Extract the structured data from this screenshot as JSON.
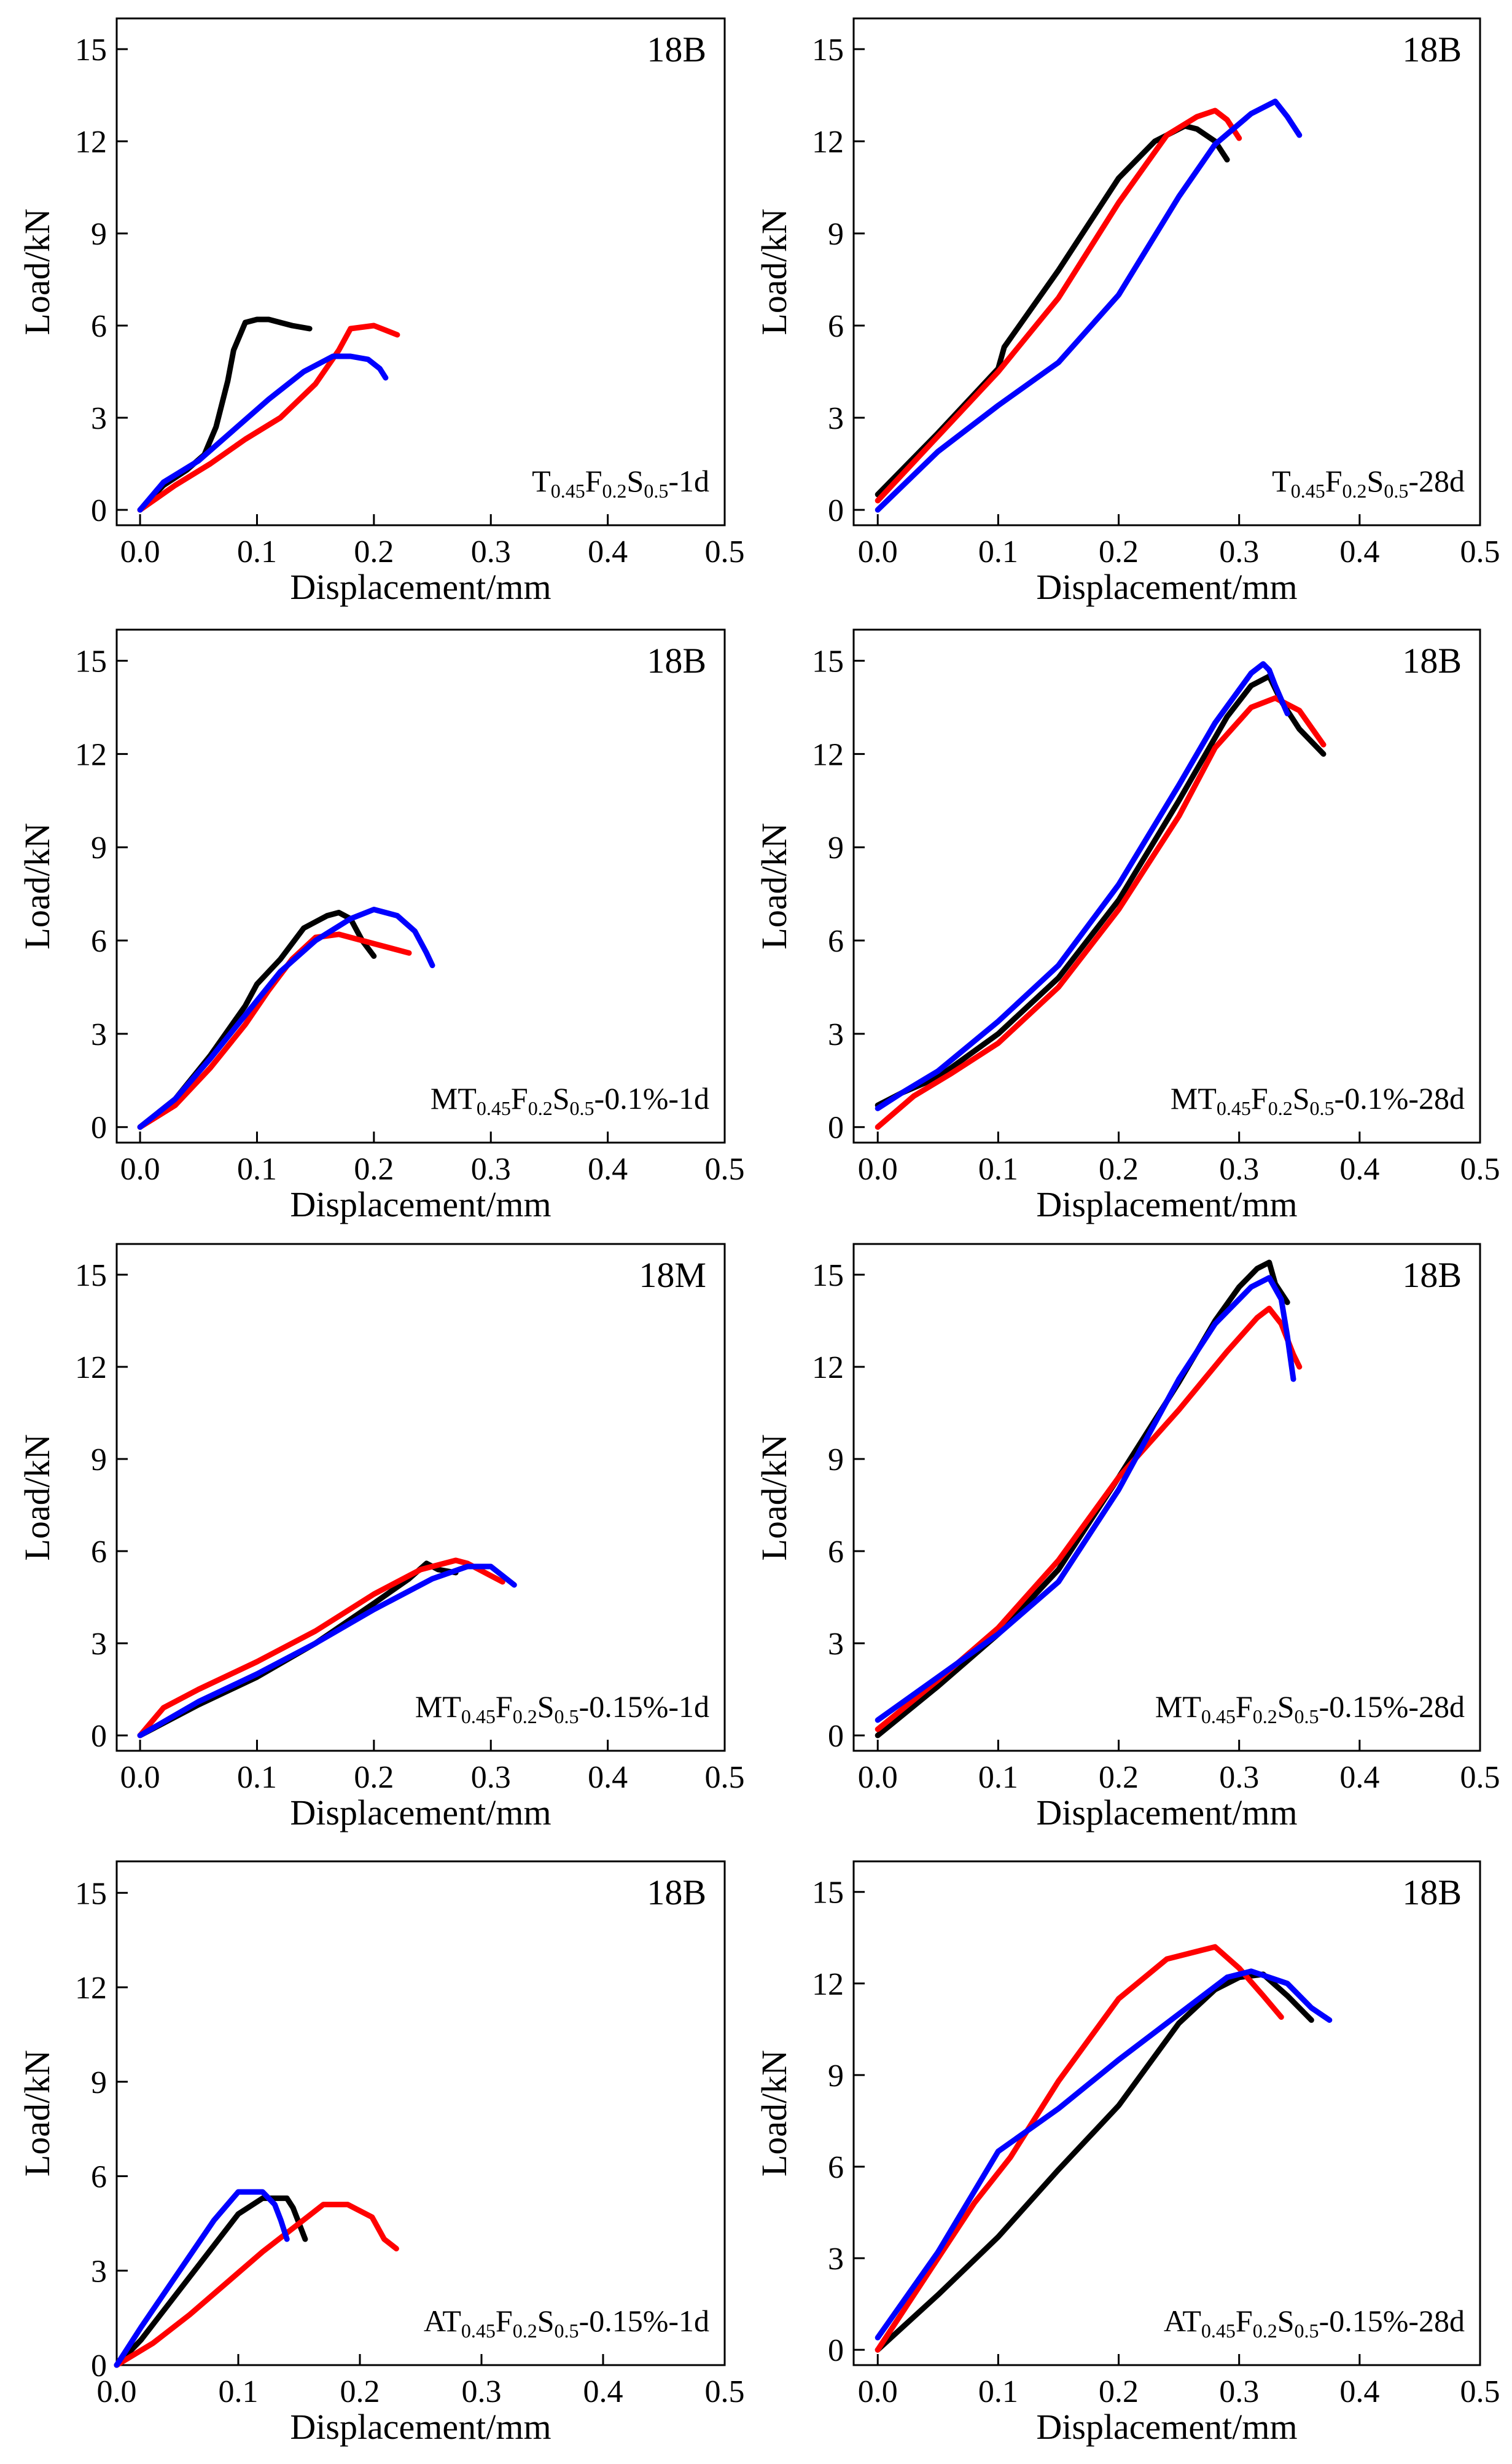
{
  "figure": {
    "colors": {
      "black": "#000000",
      "red": "#ff0000",
      "blue": "#0000ff"
    }
  },
  "chart_data": [
    {
      "type": "line",
      "tag": "18B",
      "label": {
        "pre": "T",
        "s1": "0.45",
        "m1": "F",
        "s2": "0.2",
        "m2": "S",
        "s3": "0.5",
        "post": "-1d"
      },
      "xlabel": "Displacement/mm",
      "ylabel": "Load/kN",
      "xlim": [
        -0.02,
        0.5
      ],
      "ylim": [
        -0.5,
        16
      ],
      "xticks": [
        "0.0",
        "0.1",
        "0.2",
        "0.3",
        "0.4",
        "0.5"
      ],
      "yticks": [
        "0",
        "3",
        "6",
        "9",
        "12",
        "15"
      ],
      "series": [
        {
          "name": "black",
          "color": "#000000",
          "x": [
            0.0,
            0.02,
            0.04,
            0.055,
            0.065,
            0.075,
            0.08,
            0.09,
            0.1,
            0.11,
            0.12,
            0.13,
            0.145
          ],
          "y": [
            0.0,
            0.8,
            1.3,
            1.8,
            2.7,
            4.2,
            5.2,
            6.1,
            6.2,
            6.2,
            6.1,
            6.0,
            5.9
          ]
        },
        {
          "name": "red",
          "color": "#ff0000",
          "x": [
            0.0,
            0.03,
            0.06,
            0.09,
            0.12,
            0.15,
            0.17,
            0.18,
            0.2,
            0.22
          ],
          "y": [
            0.0,
            0.8,
            1.5,
            2.3,
            3.0,
            4.1,
            5.2,
            5.9,
            6.0,
            5.7
          ]
        },
        {
          "name": "blue",
          "color": "#0000ff",
          "x": [
            0.0,
            0.02,
            0.05,
            0.08,
            0.11,
            0.14,
            0.165,
            0.18,
            0.195,
            0.205,
            0.21
          ],
          "y": [
            0.0,
            0.9,
            1.6,
            2.6,
            3.6,
            4.5,
            5.0,
            5.0,
            4.9,
            4.6,
            4.3
          ]
        }
      ]
    },
    {
      "type": "line",
      "tag": "18B",
      "label": {
        "pre": "T",
        "s1": "0.45",
        "m1": "F",
        "s2": "0.2",
        "m2": "S",
        "s3": "0.5",
        "post": "-28d"
      },
      "xlabel": "Displacement/mm",
      "ylabel": "Load/kN",
      "xlim": [
        -0.02,
        0.5
      ],
      "ylim": [
        -0.5,
        16
      ],
      "xticks": [
        "0.0",
        "0.1",
        "0.2",
        "0.3",
        "0.4",
        "0.5"
      ],
      "yticks": [
        "0",
        "3",
        "6",
        "9",
        "12",
        "15"
      ],
      "series": [
        {
          "name": "black",
          "color": "#000000",
          "x": [
            0.0,
            0.05,
            0.1,
            0.105,
            0.15,
            0.2,
            0.23,
            0.255,
            0.265,
            0.28,
            0.29
          ],
          "y": [
            0.5,
            2.5,
            4.6,
            5.3,
            7.8,
            10.8,
            12.0,
            12.5,
            12.4,
            12.0,
            11.4
          ]
        },
        {
          "name": "red",
          "color": "#ff0000",
          "x": [
            0.0,
            0.05,
            0.1,
            0.15,
            0.2,
            0.24,
            0.265,
            0.28,
            0.29,
            0.3
          ],
          "y": [
            0.3,
            2.4,
            4.5,
            6.9,
            10.0,
            12.2,
            12.8,
            13.0,
            12.7,
            12.1
          ]
        },
        {
          "name": "blue",
          "color": "#0000ff",
          "x": [
            0.0,
            0.05,
            0.1,
            0.15,
            0.2,
            0.25,
            0.28,
            0.31,
            0.33,
            0.34,
            0.35
          ],
          "y": [
            0.0,
            1.9,
            3.4,
            4.8,
            7.0,
            10.2,
            11.9,
            12.9,
            13.3,
            12.8,
            12.2
          ]
        }
      ]
    },
    {
      "type": "line",
      "tag": "18B",
      "label": {
        "pre": "MT",
        "s1": "0.45",
        "m1": "F",
        "s2": "0.2",
        "m2": "S",
        "s3": "0.5",
        "post": "-0.1%-1d"
      },
      "xlabel": "Displacement/mm",
      "ylabel": "Load/kN",
      "xlim": [
        -0.02,
        0.5
      ],
      "ylim": [
        -0.5,
        16
      ],
      "xticks": [
        "0.0",
        "0.1",
        "0.2",
        "0.3",
        "0.4",
        "0.5"
      ],
      "yticks": [
        "0",
        "3",
        "6",
        "9",
        "12",
        "15"
      ],
      "series": [
        {
          "name": "black",
          "color": "#000000",
          "x": [
            0.0,
            0.03,
            0.06,
            0.09,
            0.1,
            0.12,
            0.14,
            0.16,
            0.17,
            0.18,
            0.19,
            0.2
          ],
          "y": [
            0.0,
            0.9,
            2.3,
            3.9,
            4.6,
            5.4,
            6.4,
            6.8,
            6.9,
            6.7,
            6.0,
            5.5
          ]
        },
        {
          "name": "red",
          "color": "#ff0000",
          "x": [
            0.0,
            0.03,
            0.06,
            0.09,
            0.11,
            0.13,
            0.15,
            0.17,
            0.2,
            0.23
          ],
          "y": [
            0.0,
            0.7,
            1.9,
            3.3,
            4.4,
            5.4,
            6.1,
            6.2,
            5.9,
            5.6
          ]
        },
        {
          "name": "blue",
          "color": "#0000ff",
          "x": [
            0.0,
            0.03,
            0.06,
            0.09,
            0.12,
            0.15,
            0.18,
            0.2,
            0.22,
            0.235,
            0.245,
            0.25
          ],
          "y": [
            0.0,
            0.9,
            2.2,
            3.6,
            5.0,
            6.0,
            6.7,
            7.0,
            6.8,
            6.3,
            5.6,
            5.2
          ]
        }
      ]
    },
    {
      "type": "line",
      "tag": "18B",
      "label": {
        "pre": "MT",
        "s1": "0.45",
        "m1": "F",
        "s2": "0.2",
        "m2": "S",
        "s3": "0.5",
        "post": "-0.1%-28d"
      },
      "xlabel": "Displacement/mm",
      "ylabel": "Load/kN",
      "xlim": [
        -0.02,
        0.5
      ],
      "ylim": [
        -0.5,
        16
      ],
      "xticks": [
        "0.0",
        "0.1",
        "0.2",
        "0.3",
        "0.4",
        "0.5"
      ],
      "yticks": [
        "0",
        "3",
        "6",
        "9",
        "12",
        "15"
      ],
      "series": [
        {
          "name": "black",
          "color": "#000000",
          "x": [
            0.0,
            0.02,
            0.05,
            0.1,
            0.15,
            0.2,
            0.25,
            0.29,
            0.31,
            0.325,
            0.335,
            0.35,
            0.37
          ],
          "y": [
            0.7,
            1.1,
            1.6,
            3.0,
            4.8,
            7.3,
            10.5,
            13.2,
            14.2,
            14.5,
            13.7,
            12.8,
            12.0
          ]
        },
        {
          "name": "red",
          "color": "#ff0000",
          "x": [
            0.0,
            0.03,
            0.06,
            0.1,
            0.15,
            0.2,
            0.25,
            0.28,
            0.31,
            0.33,
            0.35,
            0.37
          ],
          "y": [
            0.0,
            1.0,
            1.7,
            2.7,
            4.5,
            7.0,
            10.0,
            12.2,
            13.5,
            13.8,
            13.4,
            12.3
          ]
        },
        {
          "name": "blue",
          "color": "#0000ff",
          "x": [
            0.0,
            0.02,
            0.05,
            0.1,
            0.15,
            0.2,
            0.25,
            0.28,
            0.31,
            0.32,
            0.325,
            0.33,
            0.34
          ],
          "y": [
            0.6,
            1.1,
            1.8,
            3.4,
            5.2,
            7.8,
            11.0,
            13.0,
            14.6,
            14.9,
            14.7,
            14.2,
            13.3
          ]
        }
      ]
    },
    {
      "type": "line",
      "tag": "18M",
      "label": {
        "pre": "MT",
        "s1": "0.45",
        "m1": "F",
        "s2": "0.2",
        "m2": "S",
        "s3": "0.5",
        "post": "-0.15%-1d"
      },
      "xlabel": "Displacement/mm",
      "ylabel": "Load/kN",
      "xlim": [
        -0.02,
        0.5
      ],
      "ylim": [
        -0.5,
        16
      ],
      "xticks": [
        "0.0",
        "0.1",
        "0.2",
        "0.3",
        "0.4",
        "0.5"
      ],
      "yticks": [
        "0",
        "3",
        "6",
        "9",
        "12",
        "15"
      ],
      "series": [
        {
          "name": "black",
          "color": "#000000",
          "x": [
            0.0,
            0.05,
            0.1,
            0.15,
            0.2,
            0.23,
            0.245,
            0.255,
            0.27
          ],
          "y": [
            0.0,
            1.0,
            1.9,
            3.0,
            4.3,
            5.1,
            5.6,
            5.4,
            5.3
          ]
        },
        {
          "name": "red",
          "color": "#ff0000",
          "x": [
            0.0,
            0.02,
            0.05,
            0.1,
            0.15,
            0.2,
            0.24,
            0.27,
            0.28,
            0.3,
            0.31
          ],
          "y": [
            0.0,
            0.9,
            1.5,
            2.4,
            3.4,
            4.6,
            5.4,
            5.7,
            5.6,
            5.2,
            5.0
          ]
        },
        {
          "name": "blue",
          "color": "#0000ff",
          "x": [
            0.0,
            0.05,
            0.1,
            0.15,
            0.2,
            0.25,
            0.28,
            0.3,
            0.31,
            0.32
          ],
          "y": [
            0.0,
            1.1,
            2.0,
            3.0,
            4.1,
            5.1,
            5.5,
            5.5,
            5.2,
            4.9
          ]
        }
      ]
    },
    {
      "type": "line",
      "tag": "18B",
      "label": {
        "pre": "MT",
        "s1": "0.45",
        "m1": "F",
        "s2": "0.2",
        "m2": "S",
        "s3": "0.5",
        "post": "-0.15%-28d"
      },
      "xlabel": "Displacement/mm",
      "ylabel": "Load/kN",
      "xlim": [
        -0.02,
        0.5
      ],
      "ylim": [
        -0.5,
        16
      ],
      "xticks": [
        "0.0",
        "0.1",
        "0.2",
        "0.3",
        "0.4",
        "0.5"
      ],
      "yticks": [
        "0",
        "3",
        "6",
        "9",
        "12",
        "15"
      ],
      "series": [
        {
          "name": "black",
          "color": "#000000",
          "x": [
            0.0,
            0.05,
            0.1,
            0.15,
            0.2,
            0.25,
            0.28,
            0.3,
            0.315,
            0.325,
            0.33,
            0.34
          ],
          "y": [
            0.0,
            1.6,
            3.3,
            5.4,
            8.4,
            11.5,
            13.5,
            14.6,
            15.2,
            15.4,
            14.7,
            14.1
          ]
        },
        {
          "name": "red",
          "color": "#ff0000",
          "x": [
            0.0,
            0.05,
            0.1,
            0.15,
            0.2,
            0.25,
            0.29,
            0.315,
            0.325,
            0.335,
            0.345,
            0.35
          ],
          "y": [
            0.2,
            1.8,
            3.5,
            5.7,
            8.4,
            10.6,
            12.5,
            13.6,
            13.9,
            13.4,
            12.4,
            12.0
          ]
        },
        {
          "name": "blue",
          "color": "#0000ff",
          "x": [
            0.0,
            0.05,
            0.1,
            0.15,
            0.2,
            0.25,
            0.28,
            0.31,
            0.325,
            0.335,
            0.34,
            0.345
          ],
          "y": [
            0.5,
            1.9,
            3.3,
            5.0,
            8.0,
            11.6,
            13.4,
            14.6,
            14.9,
            14.2,
            13.0,
            11.6
          ]
        }
      ]
    },
    {
      "type": "line",
      "tag": "18B",
      "label": {
        "pre": "AT",
        "s1": "0.45",
        "m1": "F",
        "s2": "0.2",
        "m2": "S",
        "s3": "0.5",
        "post": "-0.15%-1d"
      },
      "xlabel": "Displacement/mm",
      "ylabel": "Load/kN",
      "xlim": [
        0.0,
        0.5
      ],
      "ylim": [
        0.0,
        16
      ],
      "xticks": [
        "0.0",
        "0.1",
        "0.2",
        "0.3",
        "0.4",
        "0.5"
      ],
      "yticks": [
        "0",
        "3",
        "6",
        "9",
        "12",
        "15"
      ],
      "series": [
        {
          "name": "black",
          "color": "#000000",
          "x": [
            0.0,
            0.02,
            0.05,
            0.08,
            0.1,
            0.12,
            0.14,
            0.145,
            0.15,
            0.155
          ],
          "y": [
            0.0,
            0.8,
            2.3,
            3.8,
            4.8,
            5.3,
            5.3,
            5.0,
            4.5,
            4.0
          ]
        },
        {
          "name": "red",
          "color": "#ff0000",
          "x": [
            0.0,
            0.03,
            0.06,
            0.09,
            0.12,
            0.15,
            0.17,
            0.19,
            0.21,
            0.22,
            0.23
          ],
          "y": [
            0.0,
            0.7,
            1.6,
            2.6,
            3.6,
            4.5,
            5.1,
            5.1,
            4.7,
            4.0,
            3.7
          ]
        },
        {
          "name": "blue",
          "color": "#0000ff",
          "x": [
            0.0,
            0.02,
            0.05,
            0.08,
            0.1,
            0.12,
            0.13,
            0.135,
            0.14
          ],
          "y": [
            0.0,
            1.2,
            2.9,
            4.6,
            5.5,
            5.5,
            5.1,
            4.6,
            4.0
          ]
        }
      ]
    },
    {
      "type": "line",
      "tag": "18B",
      "label": {
        "pre": "AT",
        "s1": "0.45",
        "m1": "F",
        "s2": "0.2",
        "m2": "S",
        "s3": "0.5",
        "post": "-0.15%-28d"
      },
      "xlabel": "Displacement/mm",
      "ylabel": "Load/kN",
      "xlim": [
        -0.02,
        0.5
      ],
      "ylim": [
        -0.5,
        16
      ],
      "xticks": [
        "0.0",
        "0.1",
        "0.2",
        "0.3",
        "0.4",
        "0.5"
      ],
      "yticks": [
        "0",
        "3",
        "6",
        "9",
        "12",
        "15"
      ],
      "series": [
        {
          "name": "black",
          "color": "#000000",
          "x": [
            0.0,
            0.05,
            0.1,
            0.15,
            0.2,
            0.25,
            0.28,
            0.3,
            0.32,
            0.34,
            0.355,
            0.36
          ],
          "y": [
            0.0,
            1.8,
            3.7,
            5.9,
            8.0,
            10.7,
            11.8,
            12.2,
            12.3,
            11.6,
            11.0,
            10.8
          ]
        },
        {
          "name": "red",
          "color": "#ff0000",
          "x": [
            0.0,
            0.04,
            0.08,
            0.11,
            0.15,
            0.2,
            0.24,
            0.27,
            0.28,
            0.3,
            0.32,
            0.335
          ],
          "y": [
            0.0,
            2.4,
            4.8,
            6.3,
            8.8,
            11.5,
            12.8,
            13.1,
            13.2,
            12.5,
            11.6,
            10.9
          ]
        },
        {
          "name": "blue",
          "color": "#0000ff",
          "x": [
            0.0,
            0.05,
            0.1,
            0.15,
            0.2,
            0.25,
            0.29,
            0.31,
            0.34,
            0.36,
            0.375
          ],
          "y": [
            0.4,
            3.2,
            6.5,
            7.9,
            9.5,
            11.0,
            12.2,
            12.4,
            12.0,
            11.2,
            10.8
          ]
        }
      ]
    }
  ]
}
